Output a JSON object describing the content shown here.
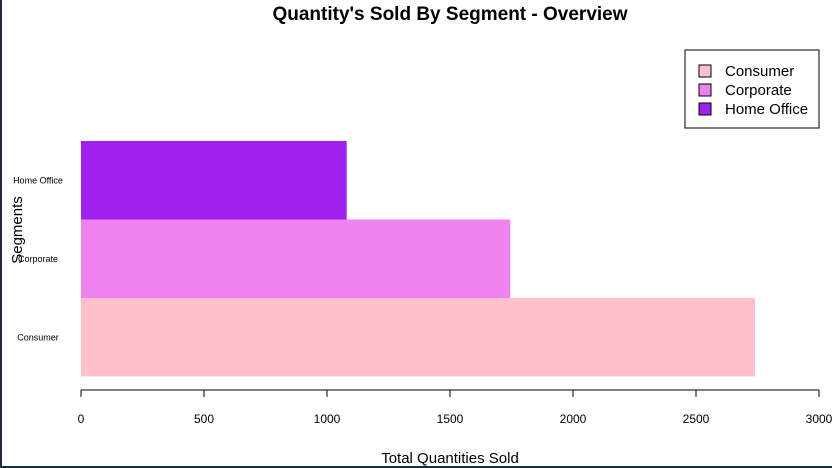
{
  "chart_data": {
    "type": "bar",
    "orientation": "horizontal",
    "title": "Quantity's Sold By Segment - Overview",
    "xlabel": "Total Quantities Sold",
    "ylabel": "Segments",
    "categories": [
      "Consumer",
      "Corporate",
      "Home Office"
    ],
    "values": [
      2740,
      1745,
      1080
    ],
    "colors": [
      "#ffc0cb",
      "#ee82ee",
      "#a020f0"
    ],
    "xlim": [
      0,
      3000
    ],
    "xticks": [
      0,
      500,
      1000,
      1500,
      2000,
      2500,
      3000
    ],
    "xtick_labels": [
      "0",
      "500",
      "1000",
      "1500",
      "2000",
      "2500",
      "3000"
    ],
    "legend": {
      "position": "top-right",
      "entries": [
        "Consumer",
        "Corporate",
        "Home Office"
      ]
    },
    "grid": false
  }
}
